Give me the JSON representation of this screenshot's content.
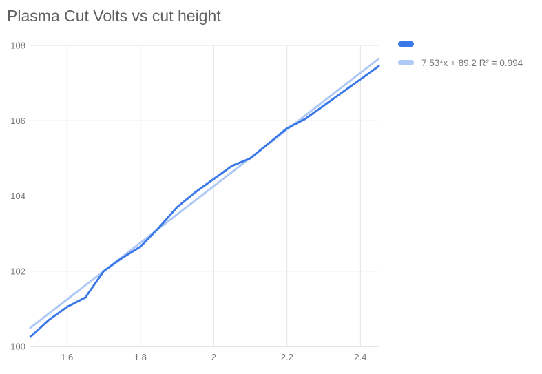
{
  "title": "Plasma Cut Volts vs cut height",
  "legend": {
    "position": "right-top",
    "items": [
      {
        "label": "",
        "color": "#3B78E7",
        "kind": "series"
      },
      {
        "label": "7.53*x + 89.2 R² = 0.994",
        "color": "#AEC9F5",
        "kind": "trendline"
      }
    ]
  },
  "colors": {
    "background": "#FFFFFF",
    "series_line": "#3B78E7",
    "trend_line": "#AEC9F5",
    "gridline": "#E3E3E3",
    "axis_line": "#C9C9C9",
    "title_text": "#616161",
    "tick_text": "#757575"
  },
  "chart_data": {
    "type": "line",
    "title": "Plasma Cut Volts vs cut height",
    "xlabel": "",
    "ylabel": "",
    "xlim": [
      1.5,
      2.45
    ],
    "ylim": [
      100,
      108
    ],
    "grid": true,
    "legend_position": "right-top",
    "x_ticks": [
      1.6,
      1.8,
      2,
      2.2,
      2.4
    ],
    "x_tick_labels": [
      "1.6",
      "1.8",
      "2",
      "2.2",
      "2.4"
    ],
    "y_ticks": [
      100,
      102,
      104,
      106,
      108
    ],
    "y_tick_labels": [
      "100",
      "102",
      "104",
      "106",
      "108"
    ],
    "series": [
      {
        "name": "",
        "kind": "data",
        "color": "#3B78E7",
        "x": [
          1.5,
          1.55,
          1.6,
          1.65,
          1.7,
          1.75,
          1.8,
          1.85,
          1.9,
          1.95,
          2.0,
          2.05,
          2.1,
          2.15,
          2.2,
          2.25,
          2.3,
          2.35,
          2.4,
          2.45
        ],
        "y": [
          100.25,
          100.7,
          101.05,
          101.3,
          102.0,
          102.35,
          102.65,
          103.15,
          103.7,
          104.1,
          104.45,
          104.8,
          105.0,
          105.4,
          105.8,
          106.05,
          106.4,
          106.75,
          107.1,
          107.45
        ]
      },
      {
        "name": "7.53*x + 89.2 R² = 0.994",
        "kind": "trendline",
        "color": "#AEC9F5",
        "equation": "7.53*x + 89.2",
        "slope": 7.53,
        "intercept": 89.2,
        "r_squared": 0.994
      }
    ]
  }
}
